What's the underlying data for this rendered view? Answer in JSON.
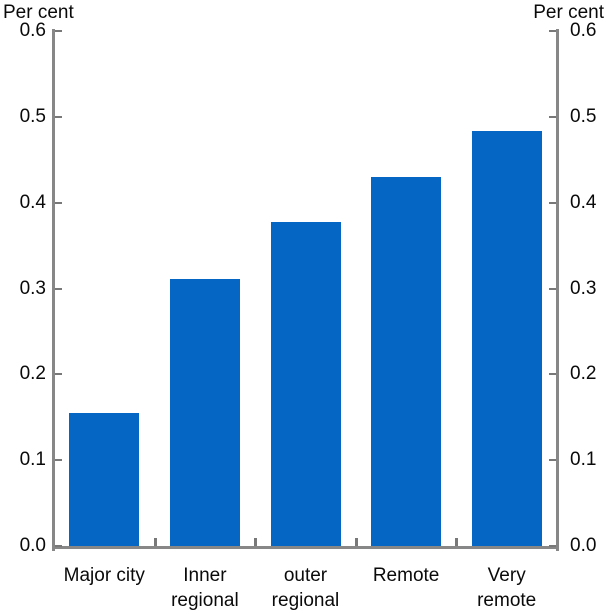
{
  "chart_data": {
    "type": "bar",
    "title": "",
    "categories": [
      "Major city",
      "Inner regional",
      "outer regional",
      "Remote",
      "Very remote"
    ],
    "category_lines": [
      [
        "Major city"
      ],
      [
        "Inner",
        "regional"
      ],
      [
        "outer",
        "regional"
      ],
      [
        "Remote"
      ],
      [
        "Very",
        "remote"
      ]
    ],
    "values": [
      0.155,
      0.311,
      0.377,
      0.43,
      0.484
    ],
    "series_name": "",
    "xlabel": "",
    "ylabel_left": "Per cent",
    "ylabel_right": "Per cent",
    "ylim": [
      0,
      0.6
    ],
    "ytick_labels": [
      "0.0",
      "0.1",
      "0.2",
      "0.3",
      "0.4",
      "0.5",
      "0.6"
    ],
    "ytick_values": [
      0,
      0.1,
      0.2,
      0.3,
      0.4,
      0.5,
      0.6
    ],
    "grid": false,
    "legend": false,
    "bar_color": "#0666c3",
    "axis_color": "#878787",
    "text_color": "#0a0a0a"
  }
}
